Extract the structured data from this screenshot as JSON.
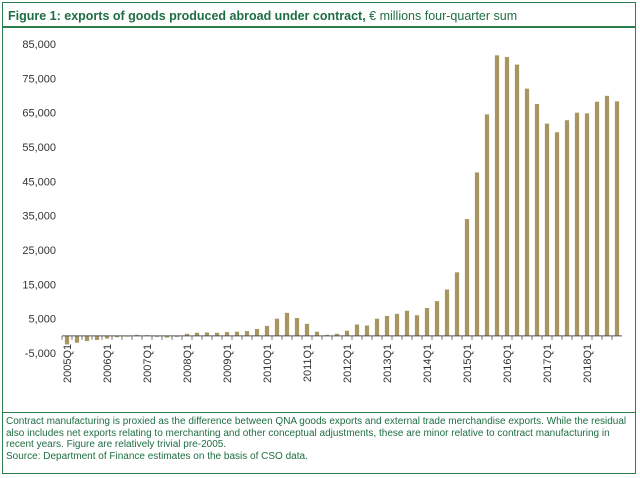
{
  "header": {
    "title_bold": "Figure 1: exports of goods produced abroad under contract,",
    "title_unit": " € millions four-quarter sum"
  },
  "notes": {
    "line1": "Contract manufacturing is proxied as the difference between QNA goods exports and external trade merchandise exports.  While the residual also includes net exports relating to merchanting and other conceptual adjustments, these are minor relative to contract manufacturing in recent years.  Figure are relatively trivial pre-2005.",
    "source": "Source: Department of Finance estimates on the basis of CSO data."
  },
  "colors": {
    "bar": "#a89560",
    "axis": "#555555",
    "accent": "#1f6e43"
  },
  "chart_data": {
    "type": "bar",
    "title": "Figure 1: exports of goods produced abroad under contract, € millions four-quarter sum",
    "ylim": [
      -5000,
      85000
    ],
    "yticks": [
      -5000,
      5000,
      15000,
      25000,
      35000,
      45000,
      55000,
      65000,
      75000,
      85000
    ],
    "ytick_labels": [
      "-5,000",
      "5,000",
      "15,000",
      "25,000",
      "35,000",
      "45,000",
      "55,000",
      "65,000",
      "75,000",
      "85,000"
    ],
    "xtick_labels": [
      "2005Q1",
      "2006Q1",
      "2007Q1",
      "2008Q1",
      "2009Q1",
      "2010Q1",
      "2011Q1",
      "2012Q1",
      "2013Q1",
      "2014Q1",
      "2015Q1",
      "2016Q1",
      "2017Q1",
      "2018Q1"
    ],
    "categories": [
      "2005Q1",
      "2005Q2",
      "2005Q3",
      "2005Q4",
      "2006Q1",
      "2006Q2",
      "2006Q3",
      "2006Q4",
      "2007Q1",
      "2007Q2",
      "2007Q3",
      "2007Q4",
      "2008Q1",
      "2008Q2",
      "2008Q3",
      "2008Q4",
      "2009Q1",
      "2009Q2",
      "2009Q3",
      "2009Q4",
      "2010Q1",
      "2010Q2",
      "2010Q3",
      "2010Q4",
      "2011Q1",
      "2011Q2",
      "2011Q3",
      "2011Q4",
      "2012Q1",
      "2012Q2",
      "2012Q3",
      "2012Q4",
      "2013Q1",
      "2013Q2",
      "2013Q3",
      "2013Q4",
      "2014Q1",
      "2014Q2",
      "2014Q3",
      "2014Q4",
      "2015Q1",
      "2015Q2",
      "2015Q3",
      "2015Q4",
      "2016Q1",
      "2016Q2",
      "2016Q3",
      "2016Q4",
      "2017Q1",
      "2017Q2",
      "2017Q3",
      "2017Q4",
      "2018Q1",
      "2018Q2",
      "2018Q3",
      "2018Q4"
    ],
    "values": [
      -2500,
      -2000,
      -1500,
      -1200,
      -800,
      -400,
      0,
      300,
      200,
      -300,
      -500,
      -300,
      600,
      900,
      1000,
      900,
      1100,
      1200,
      1400,
      2000,
      2900,
      5000,
      6700,
      5200,
      3500,
      1200,
      300,
      600,
      1500,
      3300,
      3000,
      5000,
      5800,
      6400,
      7300,
      6000,
      8100,
      10100,
      13500,
      18500,
      34000,
      47600,
      64500,
      81700,
      81200,
      79000,
      72000,
      67500,
      61800,
      59300,
      62800,
      65000,
      64800,
      68200,
      69900,
      68300
    ]
  }
}
